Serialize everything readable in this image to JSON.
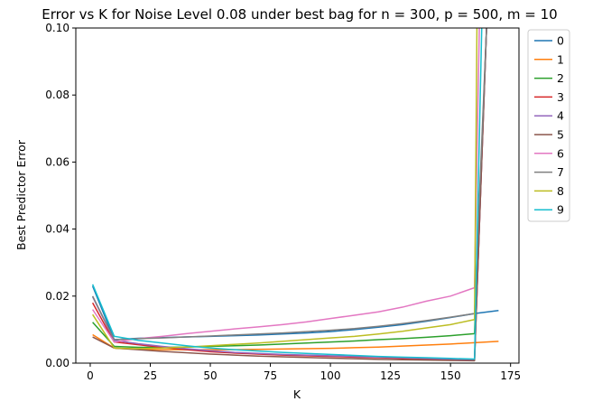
{
  "chart_data": {
    "type": "line",
    "title": "Error vs K for Noise Level 0.08 under best bag for n = 300, p = 500, m = 10",
    "xlabel": "K",
    "ylabel": "Best Predictor Error",
    "xlim": [
      -6,
      178.5
    ],
    "ylim": [
      0,
      0.1
    ],
    "xticks": [
      0,
      25,
      50,
      75,
      100,
      125,
      150,
      175
    ],
    "yticks": [
      0.0,
      0.02,
      0.04,
      0.06,
      0.08,
      0.1
    ],
    "ytick_labels": [
      "0.00",
      "0.02",
      "0.04",
      "0.06",
      "0.08",
      "0.10"
    ],
    "grid": false,
    "legend_position": "outside-right-top",
    "series": [
      {
        "name": "0",
        "color": "#1f77b4",
        "x": [
          1,
          10,
          20,
          30,
          40,
          50,
          60,
          70,
          80,
          90,
          100,
          110,
          120,
          130,
          140,
          150,
          160,
          170
        ],
        "y": [
          0.023,
          0.007,
          0.0074,
          0.0076,
          0.0078,
          0.008,
          0.0082,
          0.0084,
          0.0087,
          0.009,
          0.0094,
          0.01,
          0.0107,
          0.0115,
          0.0125,
          0.0136,
          0.0148,
          0.0157
        ]
      },
      {
        "name": "1",
        "color": "#ff7f0e",
        "x": [
          1,
          10,
          20,
          30,
          40,
          50,
          60,
          70,
          80,
          90,
          100,
          110,
          120,
          130,
          140,
          150,
          160,
          170
        ],
        "y": [
          0.0085,
          0.0045,
          0.0041,
          0.004,
          0.004,
          0.004,
          0.004,
          0.0041,
          0.0042,
          0.0043,
          0.0044,
          0.0046,
          0.0048,
          0.0051,
          0.0054,
          0.0057,
          0.0061,
          0.0065
        ]
      },
      {
        "name": "2",
        "color": "#2ca02c",
        "x": [
          1,
          10,
          20,
          30,
          40,
          50,
          60,
          70,
          80,
          90,
          100,
          110,
          120,
          130,
          140,
          150,
          160,
          165
        ],
        "y": [
          0.0122,
          0.005,
          0.0047,
          0.0047,
          0.0048,
          0.005,
          0.0052,
          0.0054,
          0.0057,
          0.006,
          0.0063,
          0.0066,
          0.007,
          0.0073,
          0.0077,
          0.0082,
          0.0088,
          0.1
        ]
      },
      {
        "name": "3",
        "color": "#d62728",
        "x": [
          1,
          10,
          20,
          30,
          40,
          50,
          60,
          70,
          80,
          90,
          100,
          110,
          120,
          130,
          140,
          150,
          160,
          165
        ],
        "y": [
          0.018,
          0.0063,
          0.0055,
          0.0047,
          0.004,
          0.0034,
          0.003,
          0.0027,
          0.0024,
          0.0022,
          0.002,
          0.0018,
          0.0016,
          0.0014,
          0.0012,
          0.001,
          0.0009,
          0.1
        ]
      },
      {
        "name": "4",
        "color": "#9467bd",
        "x": [
          1,
          10,
          20,
          30,
          40,
          50,
          60,
          70,
          80,
          90,
          100,
          110,
          120,
          130,
          140,
          150,
          160,
          165
        ],
        "y": [
          0.0198,
          0.0068,
          0.0058,
          0.005,
          0.0043,
          0.0037,
          0.0032,
          0.0029,
          0.0026,
          0.0024,
          0.0022,
          0.002,
          0.0018,
          0.0016,
          0.0014,
          0.0012,
          0.001,
          0.1
        ]
      },
      {
        "name": "5",
        "color": "#8c564b",
        "x": [
          1,
          10,
          20,
          30,
          40,
          50,
          60,
          70,
          80,
          90,
          100,
          110,
          120,
          130,
          140,
          150,
          160,
          165
        ],
        "y": [
          0.0078,
          0.0045,
          0.004,
          0.0035,
          0.0031,
          0.0027,
          0.0024,
          0.0021,
          0.0019,
          0.0017,
          0.0015,
          0.0013,
          0.0011,
          0.001,
          0.0009,
          0.0008,
          0.0007,
          0.1
        ]
      },
      {
        "name": "6",
        "color": "#e377c2",
        "x": [
          1,
          10,
          20,
          30,
          40,
          50,
          60,
          70,
          80,
          90,
          100,
          110,
          120,
          130,
          140,
          150,
          160,
          162
        ],
        "y": [
          0.016,
          0.0063,
          0.0073,
          0.008,
          0.0088,
          0.0095,
          0.0102,
          0.0108,
          0.0115,
          0.0123,
          0.0133,
          0.0143,
          0.0153,
          0.0167,
          0.0185,
          0.02,
          0.0225,
          0.1
        ]
      },
      {
        "name": "7",
        "color": "#7f7f7f",
        "x": [
          1,
          10,
          20,
          30,
          40,
          50,
          60,
          70,
          80,
          90,
          100,
          110,
          120,
          130,
          140,
          150,
          160,
          165
        ],
        "y": [
          0.02,
          0.007,
          0.0073,
          0.0075,
          0.0078,
          0.0081,
          0.0084,
          0.0087,
          0.009,
          0.0094,
          0.0098,
          0.0103,
          0.011,
          0.0118,
          0.0127,
          0.0137,
          0.0148,
          0.1
        ]
      },
      {
        "name": "8",
        "color": "#bcbd22",
        "x": [
          1,
          10,
          20,
          30,
          40,
          50,
          60,
          70,
          80,
          90,
          100,
          110,
          120,
          130,
          140,
          150,
          160,
          161
        ],
        "y": [
          0.0145,
          0.0045,
          0.0043,
          0.0045,
          0.0048,
          0.0052,
          0.0056,
          0.006,
          0.0065,
          0.007,
          0.0075,
          0.008,
          0.0087,
          0.0095,
          0.0105,
          0.0115,
          0.013,
          0.1
        ]
      },
      {
        "name": "9",
        "color": "#17becf",
        "x": [
          1,
          10,
          20,
          30,
          40,
          50,
          60,
          70,
          80,
          90,
          100,
          110,
          120,
          130,
          140,
          150,
          160,
          163
        ],
        "y": [
          0.0235,
          0.008,
          0.0068,
          0.006,
          0.0052,
          0.0045,
          0.004,
          0.0036,
          0.0032,
          0.0029,
          0.0026,
          0.0023,
          0.002,
          0.0018,
          0.0016,
          0.0014,
          0.0012,
          0.1
        ]
      }
    ]
  }
}
